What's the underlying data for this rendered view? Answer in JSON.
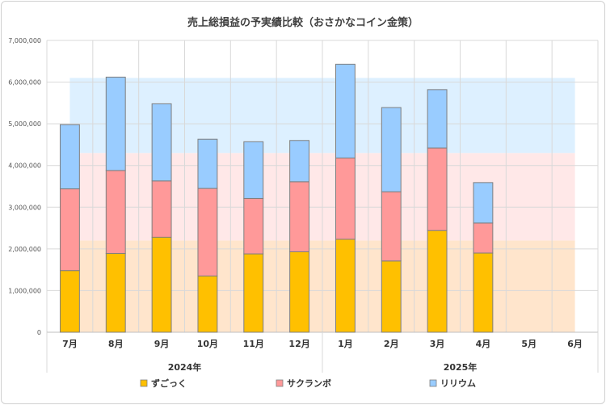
{
  "chart_data": {
    "type": "bar",
    "stacked": true,
    "title": "売上総損益の予実績比較（おさかなコイン金策）",
    "categories": [
      "7月",
      "8月",
      "9月",
      "10月",
      "11月",
      "12月",
      "1月",
      "2月",
      "3月",
      "4月",
      "5月",
      "6月"
    ],
    "groups": [
      {
        "label": "2024年",
        "span": [
          0,
          5
        ]
      },
      {
        "label": "2025年",
        "span": [
          6,
          11
        ]
      }
    ],
    "series": [
      {
        "name": "ずごっく",
        "color": "#FFC000",
        "values": [
          1480000,
          1890000,
          2280000,
          1350000,
          1880000,
          1930000,
          2230000,
          1710000,
          2440000,
          1900000,
          null,
          null
        ]
      },
      {
        "name": "サクランボ",
        "color": "#FF9999",
        "values": [
          1960000,
          1990000,
          1350000,
          2100000,
          1330000,
          1680000,
          1950000,
          1660000,
          1980000,
          720000,
          null,
          null
        ]
      },
      {
        "name": "リリウム",
        "color": "#99CCFF",
        "values": [
          1540000,
          2240000,
          1850000,
          1180000,
          1360000,
          990000,
          2250000,
          2020000,
          1400000,
          970000,
          null,
          null
        ]
      }
    ],
    "target_bands": [
      {
        "from": 0,
        "to": 2200000,
        "color": "#FFE5CC"
      },
      {
        "from": 2200000,
        "to": 4300000,
        "color": "#FFE8E8"
      },
      {
        "from": 4300000,
        "to": 6100000,
        "color": "#DDF0FF"
      }
    ],
    "ylim": [
      0,
      7000000
    ],
    "yticks": [
      "0",
      "1,000,000",
      "2,000,000",
      "3,000,000",
      "4,000,000",
      "5,000,000",
      "6,000,000",
      "7,000,000"
    ],
    "ytick_values": [
      0,
      1000000,
      2000000,
      3000000,
      4000000,
      5000000,
      6000000,
      7000000
    ],
    "grid": true,
    "legend": "bottom"
  }
}
